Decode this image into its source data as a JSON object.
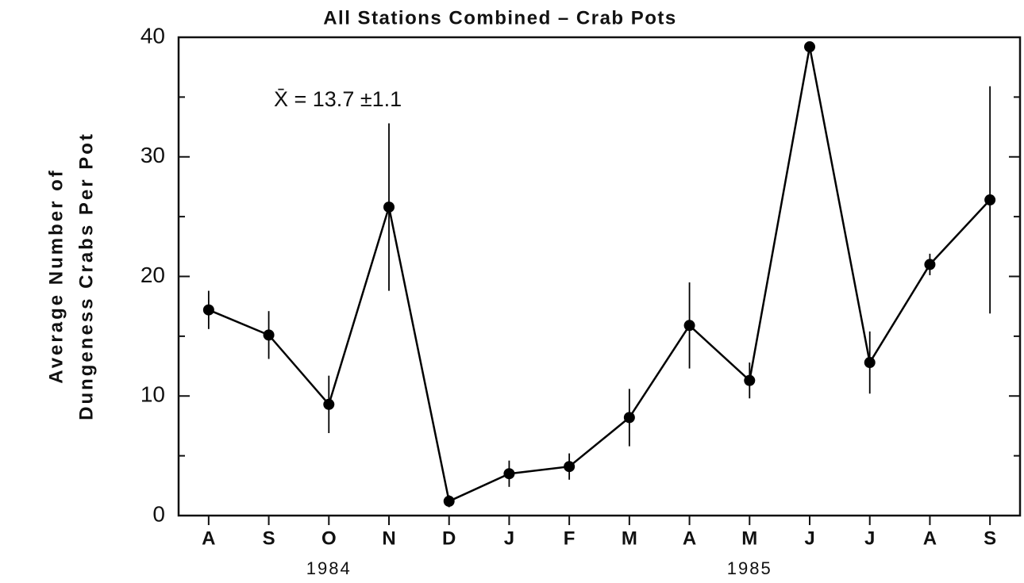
{
  "chart_data": {
    "type": "line",
    "title": "All Stations Combined – Crab Pots",
    "y_label": [
      "Average Number of",
      "Dungeness Crabs Per Pot"
    ],
    "annotation": "X̄ = 13.7  ±1.1",
    "categories": [
      "A",
      "S",
      "O",
      "N",
      "D",
      "J",
      "F",
      "M",
      "A",
      "M",
      "J",
      "J",
      "A",
      "S"
    ],
    "x_group_labels": [
      "1984",
      "1985"
    ],
    "series": [
      {
        "color": "#000000",
        "values": [
          17.2,
          15.1,
          9.3,
          25.8,
          1.2,
          3.5,
          4.1,
          8.2,
          15.9,
          11.3,
          39.2,
          12.8,
          21.0,
          26.4
        ],
        "errors": [
          1.6,
          2.0,
          2.4,
          7.0,
          0.5,
          1.1,
          1.1,
          2.4,
          3.6,
          1.5,
          null,
          2.6,
          0.9,
          9.5
        ]
      }
    ],
    "ylim": [
      0,
      40
    ],
    "yticks": [
      0,
      10,
      20,
      30,
      40
    ],
    "yminor_ticks": [
      5,
      15,
      25,
      35
    ]
  }
}
